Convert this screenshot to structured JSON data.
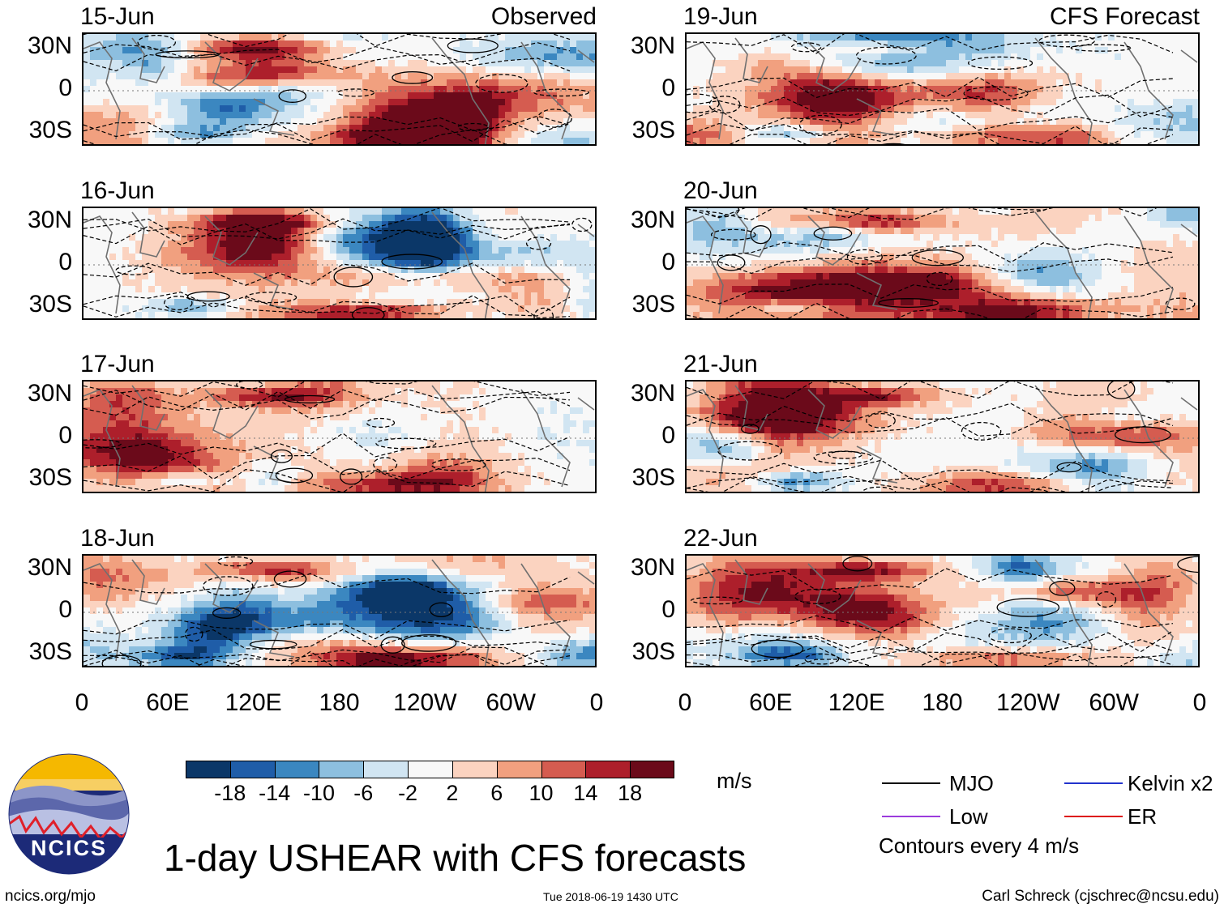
{
  "chart_data": {
    "type": "heatmap",
    "title": "1-day USHEAR with CFS forecasts",
    "variable": "USHEAR",
    "units": "m/s",
    "columns": [
      {
        "label": "Observed",
        "panels": [
          "15-Jun",
          "16-Jun",
          "17-Jun",
          "18-Jun"
        ]
      },
      {
        "label": "CFS Forecast",
        "panels": [
          "19-Jun",
          "20-Jun",
          "21-Jun",
          "22-Jun"
        ]
      }
    ],
    "y_ticks": [
      "30N",
      "0",
      "30S"
    ],
    "x_ticks": [
      "0",
      "60E",
      "120E",
      "180",
      "120W",
      "60W",
      "0"
    ],
    "colorbar": {
      "ticks": [
        "-18",
        "-14",
        "-10",
        "-6",
        "-2",
        "2",
        "6",
        "10",
        "14",
        "18"
      ],
      "colors": [
        "#0b3768",
        "#1f5da8",
        "#3b87c0",
        "#8dbfdf",
        "#d1e5f2",
        "#f8f8f8",
        "#fbd3c0",
        "#f1a07f",
        "#d55c50",
        "#ad1f2b",
        "#6b0a1a"
      ]
    },
    "legend": [
      {
        "label": "MJO",
        "color": "#000000"
      },
      {
        "label": "Kelvin x2",
        "color": "#2233cc"
      },
      {
        "label": "Low",
        "color": "#9b3bdc"
      },
      {
        "label": "ER",
        "color": "#dd1111"
      }
    ],
    "contour_note": "Contours every 4 m/s"
  },
  "logo": {
    "text": "NCICS"
  },
  "footer": {
    "left": "ncics.org/mjo",
    "center": "Tue 2018-06-19 1430 UTC",
    "right": "Carl Schreck (cjschrec@ncsu.edu)"
  }
}
